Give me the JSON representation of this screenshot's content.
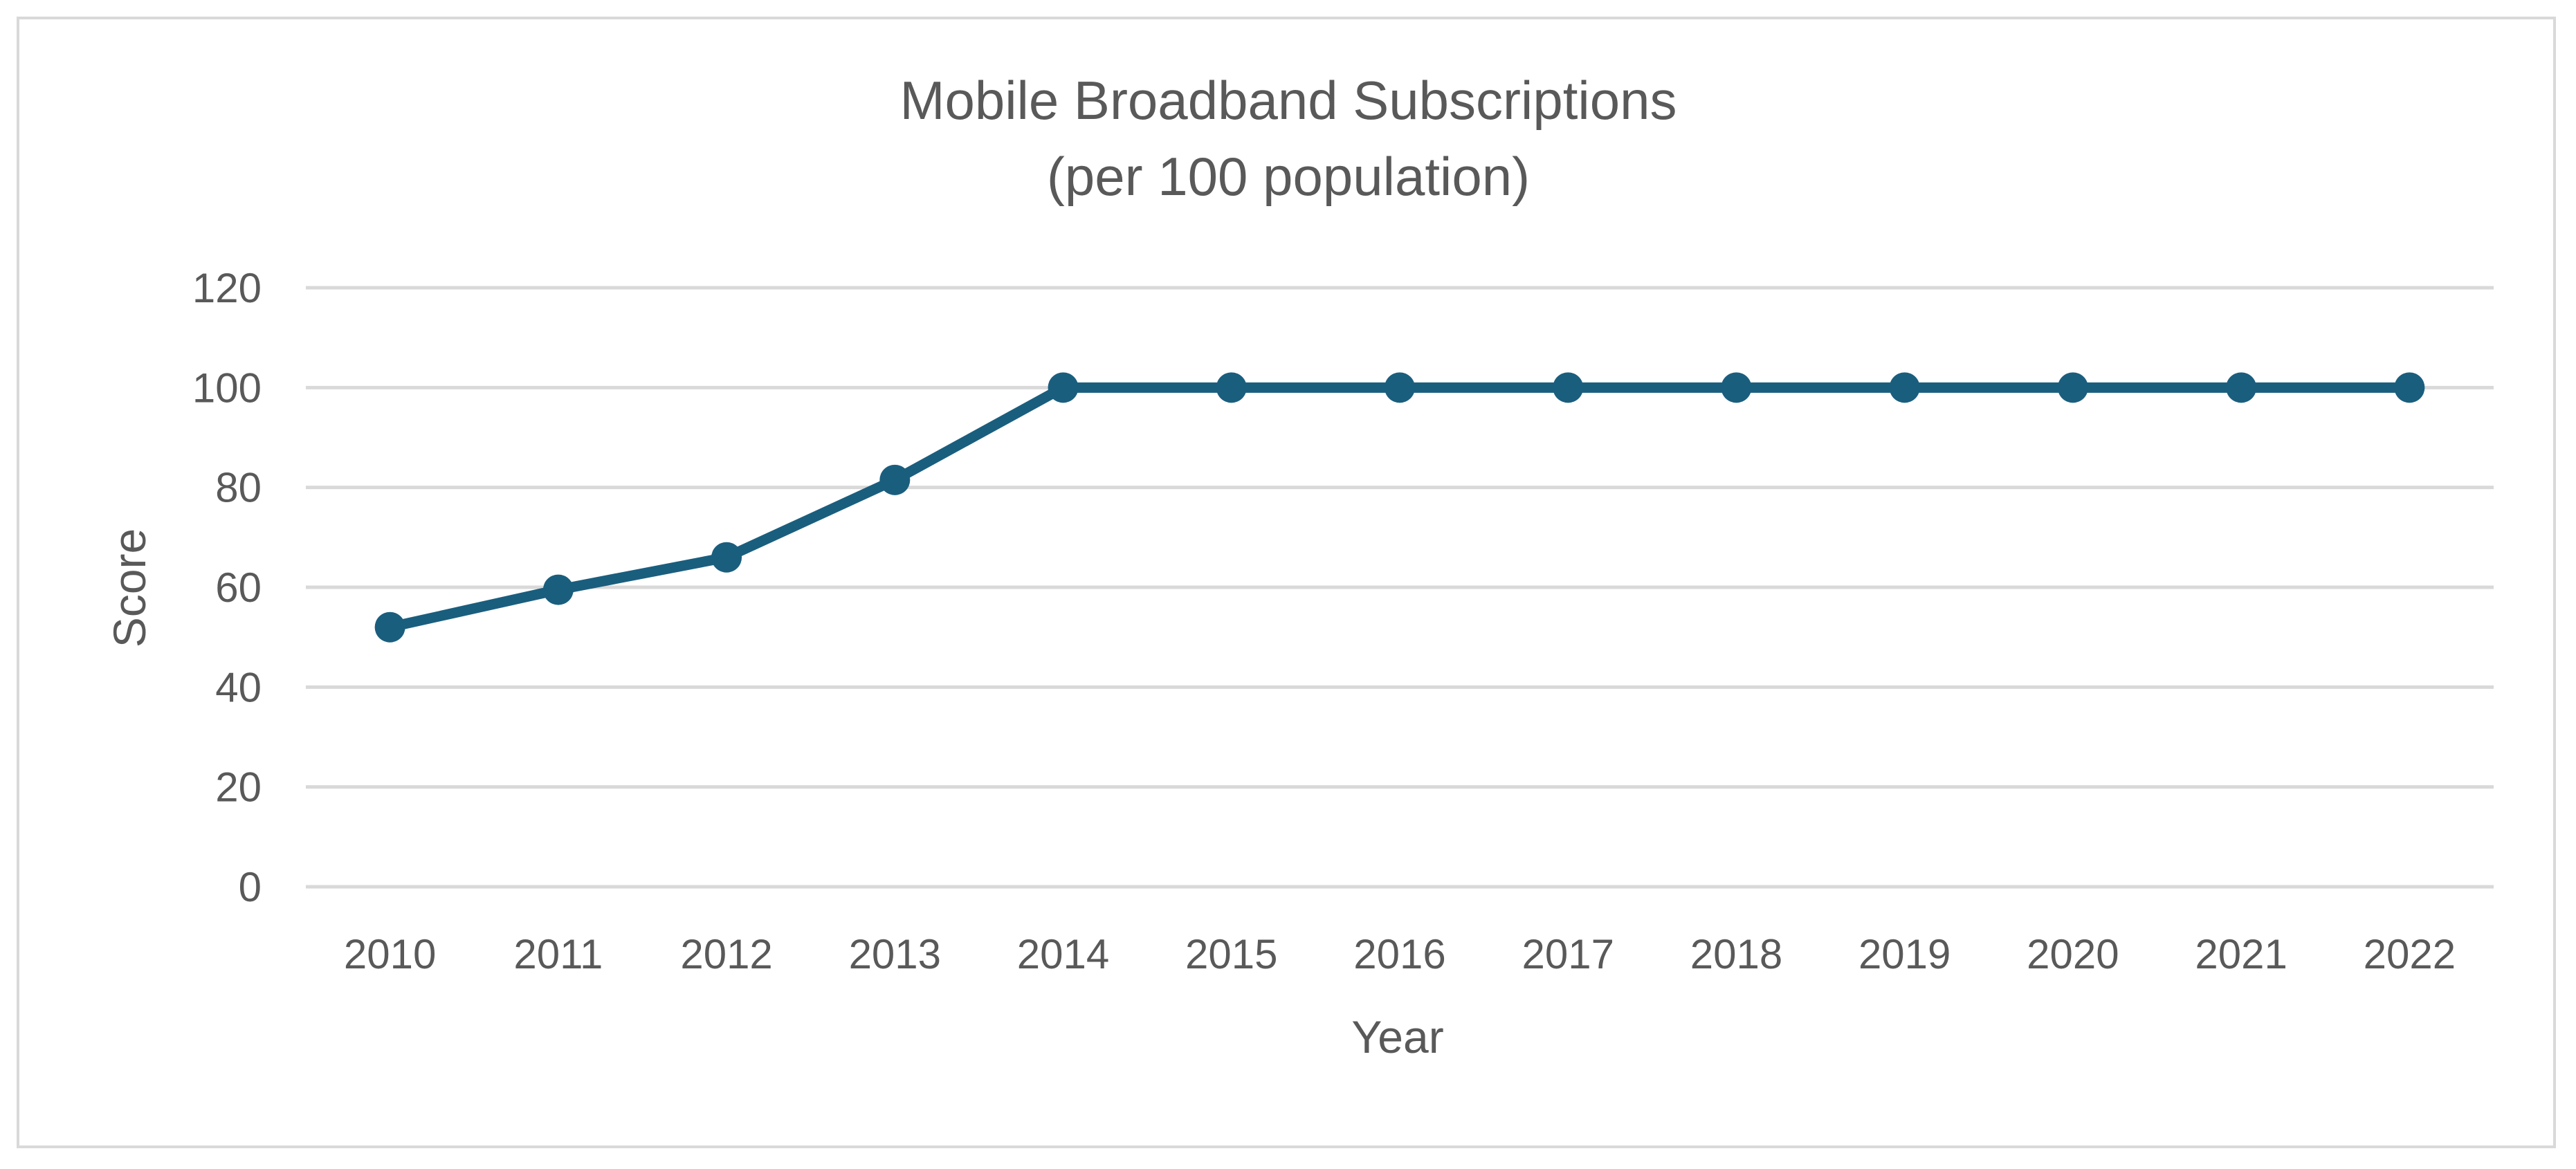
{
  "chart_data": {
    "type": "line",
    "title": "Mobile Broadband Subscriptions",
    "subtitle": "(per 100 population)",
    "xlabel": "Year",
    "ylabel": "Score",
    "categories": [
      "2010",
      "2011",
      "2012",
      "2013",
      "2014",
      "2015",
      "2016",
      "2017",
      "2018",
      "2019",
      "2020",
      "2021",
      "2022"
    ],
    "series": [
      {
        "name": "Mobile Broadband Subscriptions",
        "values": [
          52,
          59.5,
          66,
          81.5,
          100,
          100,
          100,
          100,
          100,
          100,
          100,
          100,
          100
        ]
      }
    ],
    "ylim": [
      0,
      120
    ],
    "yticks": [
      0,
      20,
      40,
      60,
      80,
      100,
      120
    ],
    "grid": true,
    "legend": "none",
    "colors": {
      "series": "#1a5e7e",
      "grid": "#d9d9d9",
      "text": "#595959",
      "frame": "#d9d9d9"
    }
  }
}
